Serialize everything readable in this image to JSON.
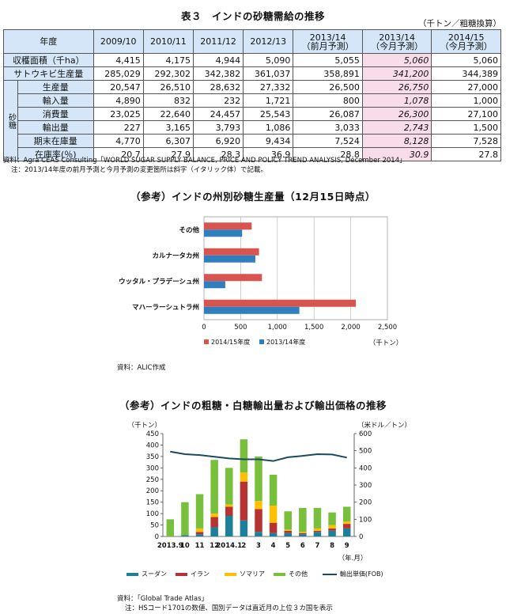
{
  "table": {
    "title": "表３　インドの砂糖需給の推移",
    "unit": "（千トン／粗糖換算）",
    "header_label": "年度",
    "columns": [
      {
        "l1": "2009/10",
        "l2": ""
      },
      {
        "l1": "2010/11",
        "l2": ""
      },
      {
        "l1": "2011/12",
        "l2": ""
      },
      {
        "l1": "2012/13",
        "l2": ""
      },
      {
        "l1": "2013/14",
        "l2": "（前月予測）"
      },
      {
        "l1": "2013/14",
        "l2": "（今月予測）"
      },
      {
        "l1": "2014/15",
        "l2": "（今月予測）"
      }
    ],
    "group_label": "砂糖",
    "rows": [
      {
        "label": "収穫面積（千ha）",
        "values": [
          "4,415",
          "4,175",
          "4,944",
          "5,090",
          "5,055",
          "5,060",
          "5,060"
        ]
      },
      {
        "label": "サトウキビ生産量",
        "values": [
          "285,029",
          "292,302",
          "342,382",
          "361,037",
          "358,891",
          "341,200",
          "344,389"
        ]
      },
      {
        "label": "生産量",
        "values": [
          "20,547",
          "26,510",
          "28,632",
          "27,332",
          "26,500",
          "26,750",
          "27,000"
        ]
      },
      {
        "label": "輸入量",
        "values": [
          "4,890",
          "832",
          "232",
          "1,721",
          "800",
          "1,078",
          "1,000"
        ]
      },
      {
        "label": "消費量",
        "values": [
          "23,025",
          "22,640",
          "24,457",
          "25,543",
          "26,087",
          "26,300",
          "27,100"
        ]
      },
      {
        "label": "輸出量",
        "values": [
          "227",
          "3,165",
          "3,793",
          "1,086",
          "3,033",
          "2,743",
          "1,500"
        ]
      },
      {
        "label": "期末在庫量",
        "values": [
          "4,770",
          "6,307",
          "6,920",
          "9,434",
          "7,524",
          "8,128",
          "7,528"
        ]
      },
      {
        "label": "在庫率(％)",
        "values": [
          "20.7",
          "27.9",
          "28.3",
          "36.9",
          "28.8",
          "30.9",
          "27.8"
        ]
      }
    ],
    "source": "資料：Agra CEAS Consulting「WORLD SUGAR SUPPLY BALANCE, PRICE AND POLICY TREND ANALYSIS, December 2014」",
    "note": "注：2013/14年度の前月予測と今月予測の変更箇所は斜字（イタリック体）で記載。"
  },
  "chart_data": [
    {
      "type": "bar",
      "orientation": "horizontal",
      "title": "（参考）インドの州別砂糖生産量（12月15日時点）",
      "categories": [
        "その他",
        "カルナータカ州",
        "ウッタル・プラデーシュ州",
        "マハーラーシュトラ州"
      ],
      "series": [
        {
          "name": "2014/15年度",
          "color": "#d9534f",
          "values": [
            650,
            750,
            790,
            2070
          ]
        },
        {
          "name": "2013/14年度",
          "color": "#2f7fbf",
          "values": [
            520,
            700,
            290,
            1300
          ]
        }
      ],
      "xlim": [
        0,
        2500
      ],
      "xticks": [
        "0",
        "500",
        "1,000",
        "1,500",
        "2,000",
        "2,500"
      ],
      "xunit": "（千トン）",
      "grid": true,
      "legend_position": "bottom",
      "source": "資料：ALIC作成"
    },
    {
      "type": "bar",
      "stacked": true,
      "title": "（参考）インドの粗糖・白糖輸出量および輸出価格の推移",
      "left_unit": "（千トン）",
      "right_unit": "（米ドル／トン）",
      "x_unit": "（年.月）",
      "x_labels": [
        "2013.9",
        "10",
        "11",
        "12",
        "2014.1",
        "2",
        "3",
        "4",
        "5",
        "6",
        "7",
        "8",
        "9"
      ],
      "series": [
        {
          "name": "スーダン",
          "color": "#1c7f9c",
          "values": [
            0,
            5,
            10,
            40,
            90,
            70,
            20,
            15,
            15,
            10,
            20,
            25,
            35
          ]
        },
        {
          "name": "イラン",
          "color": "#b73333",
          "values": [
            0,
            0,
            10,
            45,
            40,
            170,
            100,
            45,
            10,
            5,
            5,
            10,
            20
          ]
        },
        {
          "name": "ソマリア",
          "color": "#ffc000",
          "values": [
            0,
            0,
            15,
            15,
            10,
            40,
            35,
            75,
            5,
            5,
            10,
            15,
            10
          ]
        },
        {
          "name": "その他",
          "color": "#78bf3c",
          "values": [
            75,
            145,
            150,
            235,
            160,
            145,
            195,
            135,
            80,
            105,
            90,
            55,
            65
          ]
        }
      ],
      "line": {
        "name": "輸出単価(FOB)",
        "color": "#1a4a5c",
        "values": [
          495,
          480,
          475,
          465,
          455,
          450,
          450,
          440,
          462,
          470,
          480,
          478,
          460
        ]
      },
      "ylim_left": [
        0,
        450
      ],
      "yticks_left": [
        "0",
        "50",
        "100",
        "150",
        "200",
        "250",
        "300",
        "350",
        "400",
        "450"
      ],
      "ylim_right": [
        0,
        600
      ],
      "yticks_right": [
        "0",
        "100",
        "200",
        "300",
        "400",
        "500",
        "600"
      ],
      "grid": false,
      "legend_position": "bottom",
      "source": "資料：「Global Trade Atlas」",
      "note": "注：HSコード1701の数値、国別データは直近月の上位３カ国を表示"
    }
  ]
}
